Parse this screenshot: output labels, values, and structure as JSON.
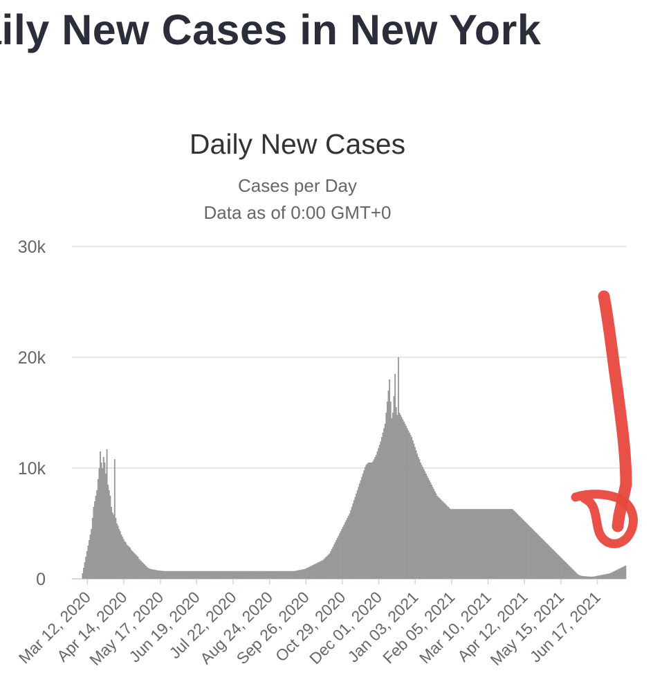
{
  "page": {
    "heading": "aily New Cases in New York"
  },
  "chart_data": {
    "type": "bar",
    "title": "Daily New Cases",
    "subtitle": "Cases per Day",
    "subtitle2": "Data as of 0:00 GMT+0",
    "xlabel": "",
    "ylabel": "",
    "ylim": [
      0,
      30000
    ],
    "yticks": [
      0,
      10000,
      20000,
      30000
    ],
    "ytick_labels": [
      "0",
      "10k",
      "20k",
      "30k"
    ],
    "grid": true,
    "legend": "none",
    "bar_color": "#999999",
    "gridline_color": "#e6e6e6",
    "baseline_color": "#ccd6eb",
    "xtick_labels": [
      "Mar 12, 2020",
      "Apr 14, 2020",
      "May 17, 2020",
      "Jun 19, 2020",
      "Jul 22, 2020",
      "Aug 24, 2020",
      "Sep 26, 2020",
      "Oct 29, 2020",
      "Dec 01, 2020",
      "Jan 03, 2021",
      "Feb 05, 2021",
      "Mar 10, 2021",
      "Apr 12, 2021",
      "May 15, 2021",
      "Jun 17, 2021"
    ],
    "start_date": "2020-03-03",
    "end_date": "2021-07-13",
    "x_start": "2020-03-03",
    "values": [
      0,
      0,
      0,
      0,
      500,
      1000,
      1500,
      2000,
      2500,
      3000,
      3500,
      4000,
      4500,
      5500,
      6500,
      7000,
      7500,
      8000,
      9000,
      10000,
      11500,
      10500,
      10000,
      11000,
      10500,
      9500,
      11700,
      8500,
      8000,
      7500,
      6500,
      6000,
      5800,
      10800,
      5500,
      5000,
      4800,
      4500,
      4300,
      4000,
      3800,
      3600,
      3400,
      3300,
      3100,
      3000,
      2900,
      2800,
      2600,
      2500,
      2400,
      2300,
      2200,
      2100,
      2000,
      1800,
      1700,
      1600,
      1500,
      1400,
      1300,
      1200,
      1100,
      1000,
      950,
      900,
      880,
      860,
      840,
      820,
      800,
      780,
      760,
      750,
      740,
      730,
      720,
      710,
      700,
      700,
      700,
      700,
      700,
      700,
      700,
      700,
      700,
      700,
      700,
      700,
      700,
      700,
      700,
      700,
      700,
      700,
      700,
      700,
      700,
      700,
      700,
      700,
      700,
      700,
      700,
      700,
      700,
      700,
      700,
      700,
      700,
      700,
      700,
      700,
      700,
      700,
      700,
      700,
      700,
      700,
      700,
      700,
      700,
      700,
      700,
      700,
      700,
      700,
      700,
      700,
      700,
      700,
      700,
      700,
      700,
      700,
      700,
      700,
      700,
      700,
      700,
      700,
      700,
      700,
      700,
      700,
      700,
      700,
      700,
      700,
      700,
      700,
      700,
      700,
      700,
      700,
      700,
      700,
      700,
      700,
      700,
      700,
      700,
      700,
      700,
      700,
      700,
      700,
      700,
      700,
      700,
      700,
      700,
      700,
      700,
      700,
      700,
      700,
      700,
      700,
      700,
      700,
      700,
      700,
      700,
      700,
      700,
      700,
      700,
      700,
      700,
      700,
      700,
      700,
      700,
      700,
      720,
      740,
      760,
      780,
      800,
      820,
      840,
      860,
      880,
      900,
      950,
      1000,
      1050,
      1100,
      1150,
      1200,
      1250,
      1300,
      1350,
      1400,
      1450,
      1500,
      1550,
      1600,
      1650,
      1700,
      1800,
      1900,
      2000,
      2100,
      2200,
      2300,
      2500,
      2700,
      2900,
      3100,
      3300,
      3500,
      3700,
      3900,
      4100,
      4300,
      4500,
      4700,
      4900,
      5100,
      5300,
      5500,
      5700,
      5900,
      6200,
      6500,
      6800,
      7100,
      7400,
      7700,
      8000,
      8300,
      8600,
      8900,
      9200,
      9500,
      9800,
      10100,
      10300,
      10400,
      10500,
      10500,
      10500,
      10500,
      10600,
      10800,
      11000,
      11200,
      11500,
      11800,
      12100,
      12400,
      12800,
      13200,
      13600,
      14000,
      15000,
      16000,
      17000,
      18000,
      16000,
      14500,
      15000,
      16500,
      18500,
      15500,
      14800,
      20000,
      15000,
      14800,
      14600,
      14400,
      14200,
      14000,
      13800,
      13600,
      13400,
      13200,
      13000,
      12800,
      12500,
      12200,
      11900,
      11600,
      11300,
      11000,
      10800,
      10500,
      10300,
      10100,
      9900,
      9700,
      9500,
      9300,
      9100,
      8900,
      8700,
      8500,
      8300,
      8100,
      7900,
      7700,
      7500,
      7400,
      7300,
      7200,
      7100,
      7000,
      6900,
      6800,
      6700,
      6600,
      6500,
      6400,
      6300,
      6300,
      6300,
      6300,
      6300,
      6300,
      6300,
      6300,
      6300,
      6300,
      6300,
      6300,
      6300,
      6300,
      6300,
      6300,
      6300,
      6300,
      6300,
      6300,
      6300,
      6300,
      6300,
      6300,
      6300,
      6300,
      6300,
      6300,
      6300,
      6300,
      6300,
      6300,
      6300,
      6300,
      6300,
      6300,
      6300,
      6300,
      6300,
      6300,
      6300,
      6300,
      6300,
      6300,
      6300,
      6300,
      6300,
      6300,
      6300,
      6300,
      6300,
      6300,
      6300,
      6300,
      6300,
      6300,
      6300,
      6200,
      6100,
      6000,
      5900,
      5800,
      5700,
      5600,
      5500,
      5400,
      5300,
      5200,
      5100,
      5000,
      4900,
      4800,
      4700,
      4600,
      4500,
      4400,
      4300,
      4200,
      4100,
      4000,
      3900,
      3800,
      3700,
      3600,
      3500,
      3400,
      3300,
      3200,
      3100,
      3000,
      2900,
      2800,
      2700,
      2600,
      2500,
      2400,
      2300,
      2200,
      2100,
      2000,
      1900,
      1800,
      1700,
      1600,
      1500,
      1400,
      1300,
      1200,
      1100,
      1000,
      900,
      800,
      700,
      600,
      500,
      400,
      350,
      300,
      280,
      260,
      250,
      240,
      230,
      220,
      210,
      200,
      200,
      200,
      200,
      200,
      220,
      240,
      260,
      280,
      300,
      320,
      340,
      360,
      380,
      400,
      420,
      440,
      460,
      480,
      500,
      550,
      600,
      650,
      700,
      750,
      800,
      850,
      900,
      950,
      1000,
      1050,
      1100,
      1150,
      1200
    ]
  }
}
